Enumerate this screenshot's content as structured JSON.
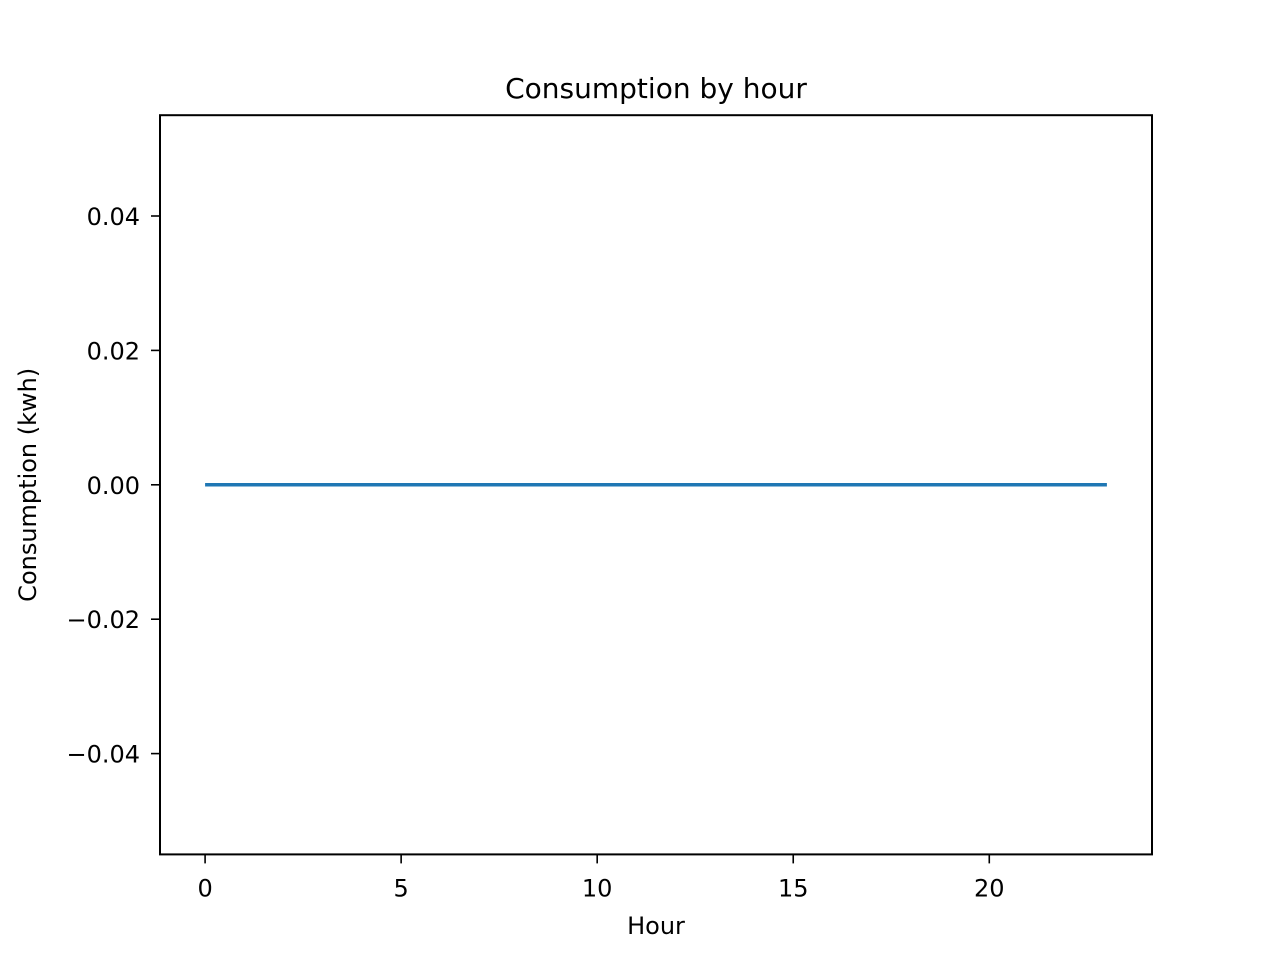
{
  "chart_data": {
    "type": "line",
    "title": "Consumption by hour",
    "xlabel": "Hour",
    "ylabel": "Consumption (kwh)",
    "xlim": [
      -1.15,
      24.15
    ],
    "ylim": [
      -0.055,
      0.055
    ],
    "x_ticks": [
      0,
      5,
      10,
      15,
      20
    ],
    "x_tick_labels": [
      "0",
      "5",
      "10",
      "15",
      "20"
    ],
    "y_ticks": [
      0.04,
      0.02,
      0.0,
      -0.02,
      -0.04
    ],
    "y_tick_labels": [
      "0.04",
      "0.02",
      "0.00",
      "−0.02",
      "−0.04"
    ],
    "grid": false,
    "series": [
      {
        "color": "#1f77b4",
        "x": [
          0,
          1,
          2,
          3,
          4,
          5,
          6,
          7,
          8,
          9,
          10,
          11,
          12,
          13,
          14,
          15,
          16,
          17,
          18,
          19,
          20,
          21,
          22,
          23
        ],
        "values": [
          0,
          0,
          0,
          0,
          0,
          0,
          0,
          0,
          0,
          0,
          0,
          0,
          0,
          0,
          0,
          0,
          0,
          0,
          0,
          0,
          0,
          0,
          0,
          0
        ]
      }
    ]
  }
}
